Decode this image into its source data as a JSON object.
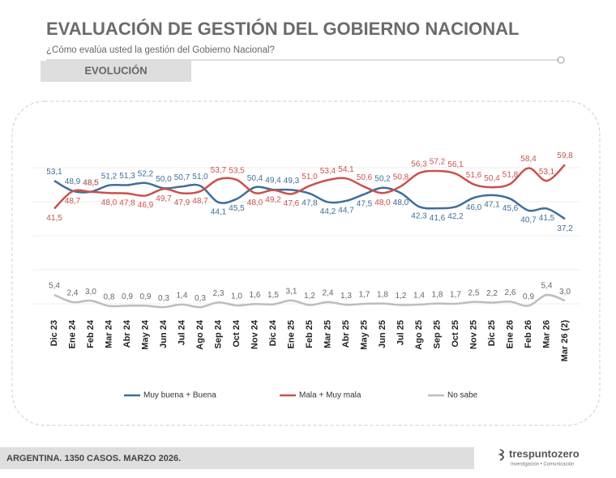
{
  "chart_data": {
    "type": "line",
    "title": "EVALUACIÓN DE GESTIÓN DEL GOBIERNO NACIONAL",
    "subtitle": "¿Cómo evalúa usted la gestión del Gobierno Nacional?",
    "section_label": "EVOLUCIÓN",
    "footer": "ARGENTINA. 1350 CASOS. MARZO 2026.",
    "logo": "trespuntozero",
    "logo_tagline": "Investigación • Comunicación",
    "categories": [
      "Dic 23",
      "Ene 24",
      "Feb 24",
      "Mar 24",
      "Abr 24",
      "May 24",
      "Jun 24",
      "Jul 24",
      "Ago 24",
      "Sep 24",
      "Oct 24",
      "Nov 24",
      "Dic 24",
      "Ene 25",
      "Feb 25",
      "Mar 25",
      "Abr 25",
      "May 25",
      "Jun 25",
      "Jul 25",
      "Ago 25",
      "Sep 25",
      "Oct 25",
      "Nov 25",
      "Dic 25",
      "Ene 26",
      "Feb 26",
      "Mar 26",
      "Mar 26 (2)"
    ],
    "ylim": [
      0,
      65
    ],
    "series": [
      {
        "name": "Muy buena + Buena",
        "color": "#3f6e9a",
        "values": [
          53.1,
          48.9,
          48.5,
          51.2,
          51.3,
          52.2,
          50.0,
          50.7,
          51.0,
          44.1,
          45.5,
          50.4,
          49.4,
          49.3,
          47.8,
          44.2,
          44.7,
          47.5,
          50.2,
          48.0,
          42.3,
          41.6,
          42.2,
          46.0,
          47.1,
          45.6,
          40.7,
          41.5,
          37.2
        ],
        "value_labels": [
          "53,1",
          "48,9",
          "48,5",
          "51,2",
          "51,3",
          "52,2",
          "50,0",
          "50,7",
          "51,0",
          "44,1",
          "45,5",
          "50,4",
          "49,4",
          "49,3",
          "47,8",
          "44,2",
          "44,7",
          "47,5",
          "50,2",
          "48,0",
          "42,3",
          "41,6",
          "42,2",
          "46,0",
          "47,1",
          "45,6",
          "40,7",
          "41,5",
          "37,2"
        ]
      },
      {
        "name": "Mala + Muy mala",
        "color": "#c9524c",
        "values": [
          41.5,
          48.7,
          48.5,
          48.0,
          47.8,
          46.9,
          49.7,
          47.9,
          48.7,
          53.7,
          53.5,
          48.0,
          49.2,
          47.6,
          51.0,
          53.4,
          54.1,
          50.6,
          48.0,
          50.8,
          56.3,
          57.2,
          56.1,
          51.6,
          50.4,
          51.8,
          58.4,
          53.1,
          59.8
        ],
        "value_labels": [
          "41,5",
          "48,7",
          "48,5",
          "48,0",
          "47,8",
          "46,9",
          "49,7",
          "47,9",
          "48,7",
          "53,7",
          "53,5",
          "48,0",
          "49,2",
          "47,6",
          "51,0",
          "53,4",
          "54,1",
          "50,6",
          "48,0",
          "50,8",
          "56,3",
          "57,2",
          "56,1",
          "51,6",
          "50,4",
          "51,8",
          "58,4",
          "53,1",
          "59,8"
        ]
      },
      {
        "name": "No sabe",
        "color": "#bdbdbd",
        "values": [
          5.4,
          2.4,
          3.0,
          0.8,
          0.9,
          0.9,
          0.3,
          1.4,
          0.3,
          2.3,
          1.0,
          1.6,
          1.5,
          3.1,
          1.2,
          2.4,
          1.3,
          1.7,
          1.8,
          1.2,
          1.4,
          1.8,
          1.7,
          2.5,
          2.2,
          2.6,
          0.9,
          5.4,
          3.0
        ],
        "value_labels": [
          "5,4",
          "2,4",
          "3,0",
          "0,8",
          "0,9",
          "0,9",
          "0,3",
          "1,4",
          "0,3",
          "2,3",
          "1,0",
          "1,6",
          "1,5",
          "3,1",
          "1,2",
          "2,4",
          "1,3",
          "1,7",
          "1,8",
          "1,2",
          "1,4",
          "1,8",
          "1,7",
          "2,5",
          "2,2",
          "2,6",
          "0,9",
          "5,4",
          "3,0"
        ]
      }
    ]
  }
}
